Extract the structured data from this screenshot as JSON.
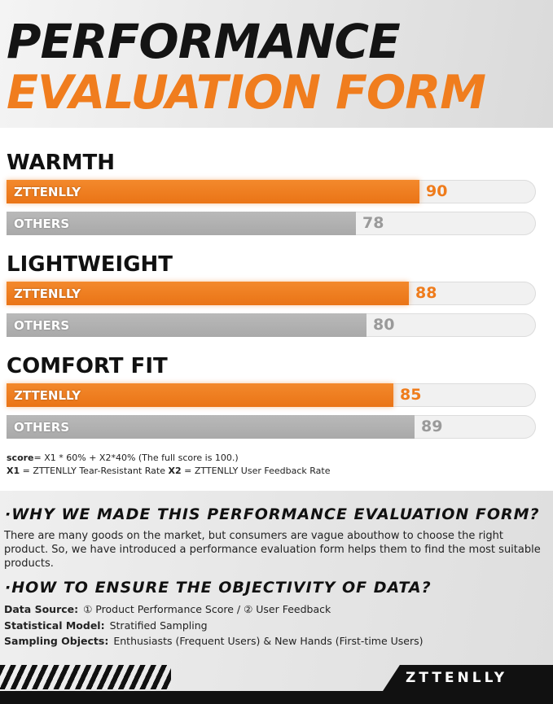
{
  "header": {
    "title_line1": "PERFORMANCE",
    "title_line2": "EVALUATION FORM"
  },
  "colors": {
    "brand_orange": "#f07d1e",
    "others_gray": "#aeaeae",
    "title_black": "#141414"
  },
  "chart_data": {
    "type": "bar",
    "orientation": "horizontal",
    "xlim": [
      0,
      100
    ],
    "groups": [
      {
        "name": "WARMTH",
        "bars": [
          {
            "label": "ZTTENLLY",
            "value": 90,
            "display": "90",
            "style": "brand"
          },
          {
            "label": "OTHERS",
            "value": 78,
            "display": "78",
            "style": "other"
          }
        ]
      },
      {
        "name": "LIGHTWEIGHT",
        "bars": [
          {
            "label": "ZTTENLLY",
            "value": 88,
            "display": "88",
            "style": "brand"
          },
          {
            "label": "OTHERS",
            "value": 80,
            "display": "80",
            "style": "other"
          }
        ]
      },
      {
        "name": "COMFORT FIT",
        "bars": [
          {
            "label": "ZTTENLLY",
            "value": 85,
            "display": "85",
            "style": "brand"
          },
          {
            "label": "OTHERS",
            "value": 89,
            "display": "89",
            "style": "other"
          }
        ]
      }
    ]
  },
  "formula": {
    "score_label": "score",
    "score_formula": "= X1 * 60% + X2*40%  (The full score is 100.)",
    "x1_label": "X1",
    "x1_text": " = ZTTENLLY Tear-Resistant Rate  ",
    "x2_label": "X2",
    "x2_text": " = ZTTENLLY User Feedback Rate"
  },
  "info": {
    "q1_title": "·WHY WE MADE THIS PERFORMANCE EVALUATION FORM?",
    "q1_text": "There are many goods on the market, but consumers are vague abouthow to choose the right product. So, we have introduced a performance evaluation form helps them to find the most suitable products.",
    "q2_title": "·HOW TO ENSURE THE OBJECTIVITY OF DATA?",
    "rows": [
      {
        "key": "Data Source:",
        "value": "① Product Performance Score   /   ② User Feedback"
      },
      {
        "key": "Statistical Model:",
        "value": "Stratified Sampling"
      },
      {
        "key": "Sampling Objects:",
        "value": "Enthusiasts (Frequent Users) & New Hands (First-time Users)"
      }
    ]
  },
  "footer": {
    "logo": "ZTTENLLY"
  }
}
